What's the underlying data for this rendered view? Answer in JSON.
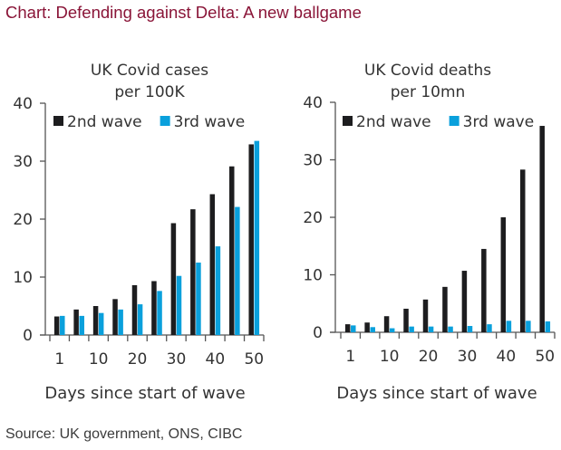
{
  "page": {
    "title": "Chart: Defending against Delta: A new ballgame",
    "source": "Source: UK government, ONS, CIBC"
  },
  "colors": {
    "title": "#8a1538",
    "series_2nd_wave": "#1d1d1f",
    "series_3rd_wave": "#0aa0dc",
    "axis": "#555555",
    "text": "#333333"
  },
  "chart_data": [
    {
      "type": "bar",
      "title_lines": [
        "UK Covid cases",
        "per 100K"
      ],
      "xlabel": "Days since start of wave",
      "ylabel": "",
      "ylim": [
        0,
        40
      ],
      "yticks": [
        0,
        10,
        20,
        30,
        40
      ],
      "categories": [
        1,
        5,
        10,
        15,
        20,
        25,
        30,
        35,
        40,
        45,
        50
      ],
      "xtick_labels": [
        "1",
        "",
        "10",
        "",
        "20",
        "",
        "30",
        "",
        "40",
        "",
        "50"
      ],
      "grid": false,
      "legend": {
        "placement": "top",
        "entries": [
          "2nd wave",
          "3rd wave"
        ]
      },
      "series": [
        {
          "name": "2nd wave",
          "values": [
            3.2,
            4.4,
            5.0,
            6.2,
            8.6,
            9.3,
            19.3,
            21.7,
            24.3,
            29.1,
            32.9
          ]
        },
        {
          "name": "3rd wave",
          "values": [
            3.3,
            3.3,
            3.8,
            4.4,
            5.3,
            7.6,
            10.2,
            12.5,
            15.3,
            22.1,
            33.5
          ]
        }
      ]
    },
    {
      "type": "bar",
      "title_lines": [
        "UK Covid deaths",
        "per 10mn"
      ],
      "xlabel": "Days since start of wave",
      "ylabel": "",
      "ylim": [
        0,
        40
      ],
      "yticks": [
        0,
        10,
        20,
        30,
        40
      ],
      "categories": [
        1,
        5,
        10,
        15,
        20,
        25,
        30,
        35,
        40,
        45,
        50
      ],
      "xtick_labels": [
        "1",
        "",
        "10",
        "",
        "20",
        "",
        "30",
        "",
        "40",
        "",
        "50"
      ],
      "grid": false,
      "legend": {
        "placement": "top",
        "entries": [
          "2nd wave",
          "3rd wave"
        ]
      },
      "series": [
        {
          "name": "2nd wave",
          "values": [
            1.4,
            1.7,
            2.8,
            4.1,
            5.7,
            7.9,
            10.7,
            14.5,
            20.0,
            28.3,
            35.9
          ]
        },
        {
          "name": "3rd wave",
          "values": [
            1.2,
            0.9,
            0.7,
            1.0,
            1.0,
            1.0,
            1.1,
            1.4,
            2.0,
            2.0,
            1.9
          ]
        }
      ]
    }
  ]
}
